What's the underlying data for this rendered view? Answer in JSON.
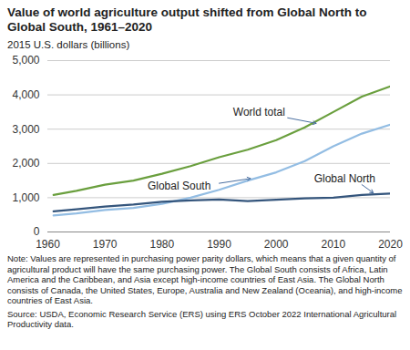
{
  "chart_data": {
    "type": "line",
    "title": "Value of world agriculture output shifted from Global North to Global South, 1961–2020",
    "subtitle": "2015 U.S. dollars (billions)",
    "note": "Note: Values are represented in purchasing power parity dollars, which means that a given quantity of agricultural product will have the same purchasing power. The Global South consists of Africa, Latin America and the Caribbean, and Asia except high-income countries of East Asia. The Global North consists of Canada, the United States, Europe, Australia and New Zealand (Oceania), and high-income countries of East Asia.",
    "source": "Source: USDA, Economic Research Service (ERS) using ERS October 2022 International Agricultural Productivity data.",
    "x": [
      1961,
      1965,
      1970,
      1975,
      1980,
      1985,
      1990,
      1995,
      2000,
      2005,
      2010,
      2015,
      2020
    ],
    "series": [
      {
        "name": "World total",
        "color": "#6a9f3e",
        "values": [
          1080,
          1200,
          1380,
          1500,
          1700,
          1920,
          2180,
          2400,
          2680,
          3050,
          3500,
          3950,
          4250
        ]
      },
      {
        "name": "Global South",
        "color": "#93bde3",
        "values": [
          480,
          540,
          640,
          700,
          820,
          1000,
          1230,
          1500,
          1740,
          2070,
          2500,
          2870,
          3130
        ]
      },
      {
        "name": "Global North",
        "color": "#34557c",
        "values": [
          600,
          660,
          740,
          800,
          880,
          920,
          950,
          900,
          940,
          980,
          1000,
          1080,
          1120
        ]
      }
    ],
    "annotations": [
      {
        "text": "World total",
        "x": 1997,
        "y": 3500,
        "arrow_from": [
          2002,
          3330
        ],
        "arrow_to": [
          2007,
          3170
        ]
      },
      {
        "text": "Global South",
        "x": 1983,
        "y": 1350,
        "arrow_from": [
          1990,
          1420
        ],
        "arrow_to": [
          1995.5,
          1560
        ]
      },
      {
        "text": "Global North",
        "x": 2012,
        "y": 1550,
        "arrow_from": [
          2015,
          1380
        ],
        "arrow_to": [
          2017,
          1140
        ]
      }
    ],
    "xlim": [
      1960,
      2020
    ],
    "xticks": [
      1960,
      1970,
      1980,
      1990,
      2000,
      2010,
      2020
    ],
    "ylim": [
      0,
      5000
    ],
    "yticks": [
      0,
      {
        "value": 1000,
        "label": "1,000"
      },
      {
        "value": 2000,
        "label": "2,000"
      },
      {
        "value": 3000,
        "label": "3,000"
      },
      {
        "value": 4000,
        "label": "4,000"
      },
      {
        "value": 5000,
        "label": "5,000"
      }
    ],
    "grid": true,
    "legend": "none"
  }
}
